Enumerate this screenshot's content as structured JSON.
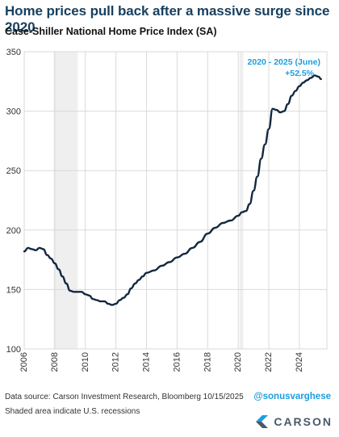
{
  "header": {
    "title": "Home prices pull back after a massive surge since 2020",
    "subtitle": "Case-Shiller National Home Price Index (SA)"
  },
  "annotation": {
    "line1": "2020 - 2025 (June)",
    "line2": "+52.5%"
  },
  "footer": {
    "source": "Data source: Carson Investment Research, Bloomberg   10/15/2025",
    "note": "Shaded area indicate U.S. recessions",
    "handle": "@sonusvarghese",
    "brand": "CARSON"
  },
  "colors": {
    "line": "#13283f",
    "grid": "#d9d9d9",
    "recession": "#efefef",
    "title": "#18405f",
    "accent": "#1a9ee0"
  },
  "chart_data": {
    "type": "line",
    "title": "Home prices pull back after a massive surge since 2020",
    "subtitle": "Case-Shiller National Home Price Index (SA)",
    "xlabel": "",
    "ylabel": "",
    "xlim": [
      2006,
      2025.8
    ],
    "ylim": [
      100,
      350
    ],
    "yticks": [
      100,
      150,
      200,
      250,
      300,
      350
    ],
    "xticks": [
      2006,
      2008,
      2010,
      2012,
      2014,
      2016,
      2018,
      2020,
      2022,
      2024
    ],
    "grid": true,
    "recessions": [
      [
        2007.92,
        2009.5
      ],
      [
        2020.08,
        2020.33
      ]
    ],
    "series": [
      {
        "x": [
          2006.0,
          2006.25,
          2006.5,
          2006.75,
          2007.0,
          2007.25,
          2007.5,
          2007.75,
          2008.0,
          2008.25,
          2008.5,
          2008.75,
          2009.0,
          2009.25,
          2009.5,
          2009.75,
          2010.0,
          2010.25,
          2010.5,
          2010.75,
          2011.0,
          2011.25,
          2011.5,
          2011.75,
          2012.0,
          2012.25,
          2012.5,
          2012.75,
          2013.0,
          2013.25,
          2013.5,
          2013.75,
          2014.0,
          2014.5,
          2015.0,
          2015.5,
          2016.0,
          2016.5,
          2017.0,
          2017.5,
          2018.0,
          2018.5,
          2019.0,
          2019.5,
          2020.0,
          2020.25,
          2020.5,
          2020.75,
          2021.0,
          2021.25,
          2021.5,
          2021.75,
          2022.0,
          2022.25,
          2022.5,
          2022.75,
          2023.0,
          2023.25,
          2023.5,
          2023.75,
          2024.0,
          2024.25,
          2024.5,
          2024.75,
          2025.0,
          2025.25,
          2025.42
        ],
        "values": [
          182,
          185,
          184,
          183,
          185,
          184,
          179,
          176,
          172,
          167,
          161,
          155,
          149,
          148,
          148,
          148,
          146,
          145,
          142,
          141,
          140,
          140,
          138,
          137,
          138,
          141,
          143,
          146,
          151,
          155,
          158,
          161,
          164,
          166,
          170,
          173,
          177,
          180,
          185,
          190,
          197,
          202,
          206,
          208,
          212,
          215,
          216,
          222,
          233,
          245,
          260,
          272,
          285,
          302,
          301,
          299,
          300,
          306,
          313,
          317,
          321,
          324,
          326,
          328,
          330,
          329,
          327
        ]
      }
    ]
  }
}
